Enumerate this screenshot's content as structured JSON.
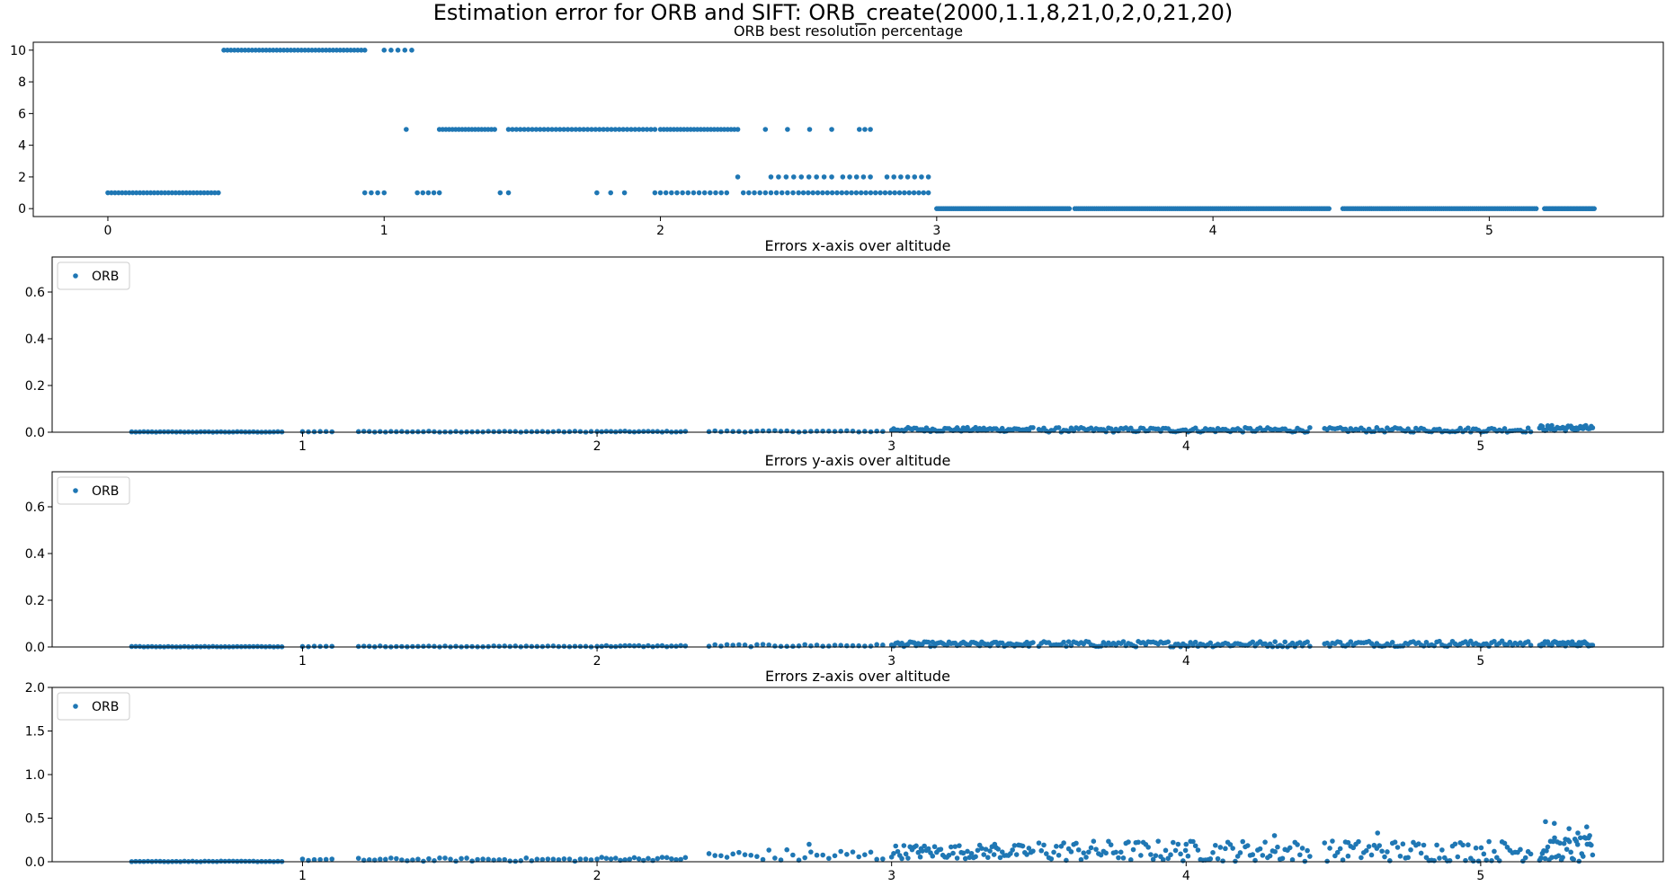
{
  "figure": {
    "suptitle": "Estimation error for ORB and SIFT: ORB_create(2000,1.1,8,21,0,2,0,21,20)"
  },
  "colors": {
    "marker": "#1f77b4",
    "axes": "#000000",
    "background": "#ffffff"
  },
  "chart_data": [
    {
      "type": "scatter",
      "title": "ORB best resolution percentage",
      "xlabel": "",
      "ylabel": "",
      "xlim": [
        -0.27,
        5.63
      ],
      "ylim": [
        -0.5,
        10.5
      ],
      "xticks": [
        0,
        1,
        2,
        3,
        4,
        5
      ],
      "yticks": [
        0,
        2,
        4,
        6,
        8,
        10
      ],
      "grid": false,
      "legend": null,
      "series": [
        {
          "runs": [
            [
              0,
              0.4,
              1,
              32,
              0
            ],
            [
              0.42,
              0.93,
              10,
              41,
              0
            ],
            [
              1.0,
              1.1,
              10,
              5,
              0
            ],
            [
              0.93,
              1.0,
              1,
              4,
              0
            ],
            [
              1.08,
              1.08,
              5,
              1,
              0
            ],
            [
              1.12,
              1.2,
              1,
              5,
              0
            ],
            [
              1.2,
              1.4,
              5,
              18,
              0
            ],
            [
              1.42,
              1.45,
              1,
              2,
              0
            ],
            [
              1.45,
              1.98,
              5,
              38,
              0
            ],
            [
              1.77,
              1.87,
              1,
              3,
              0
            ],
            [
              2.0,
              2.28,
              5,
              24,
              0
            ],
            [
              1.98,
              2.24,
              1,
              14,
              0
            ],
            [
              2.3,
              2.48,
              1,
              10,
              0
            ],
            [
              2.28,
              2.28,
              2,
              1,
              0
            ],
            [
              2.4,
              2.62,
              2,
              9,
              0
            ],
            [
              2.5,
              2.97,
              1,
              28,
              0
            ],
            [
              2.66,
              2.76,
              2,
              5,
              0
            ],
            [
              2.82,
              2.97,
              2,
              7,
              0
            ],
            [
              2.72,
              2.76,
              5,
              3,
              0
            ],
            [
              2.38,
              2.62,
              5,
              4,
              0
            ],
            [
              3.0,
              3.48,
              0,
              80,
              0
            ],
            [
              3.5,
              4.42,
              0,
              130,
              0
            ],
            [
              4.47,
              5.17,
              0,
              95,
              0
            ],
            [
              5.2,
              5.38,
              0,
              40,
              0
            ]
          ]
        }
      ]
    },
    {
      "type": "scatter",
      "title": "Errors x-axis over altitude",
      "xlabel": "",
      "ylabel": "",
      "xlim": [
        0.15,
        5.62
      ],
      "ylim": [
        0,
        0.75
      ],
      "xticks": [
        1,
        2,
        3,
        4,
        5
      ],
      "yticks": [
        0.0,
        0.2,
        0.4,
        0.6
      ],
      "grid": false,
      "legend": "upper-left",
      "series": [
        {
          "name": "ORB",
          "runs": [
            [
              0.42,
              0.93,
              0.001,
              38,
              0.001
            ],
            [
              1.0,
              1.1,
              0.002,
              6,
              0.001
            ],
            [
              1.19,
              1.98,
              0.002,
              44,
              0.002
            ],
            [
              2.0,
              2.3,
              0.002,
              20,
              0.002
            ],
            [
              2.38,
              2.97,
              0.003,
              30,
              0.003
            ],
            [
              3.0,
              3.48,
              0.01,
              70,
              0.009
            ],
            [
              3.5,
              4.42,
              0.008,
              110,
              0.01
            ],
            [
              4.47,
              5.17,
              0.008,
              80,
              0.01
            ],
            [
              5.2,
              5.38,
              0.015,
              40,
              0.012
            ]
          ]
        }
      ]
    },
    {
      "type": "scatter",
      "title": "Errors y-axis over altitude",
      "xlabel": "",
      "ylabel": "",
      "xlim": [
        0.15,
        5.62
      ],
      "ylim": [
        0,
        0.75
      ],
      "xticks": [
        1,
        2,
        3,
        4,
        5
      ],
      "yticks": [
        0.0,
        0.2,
        0.4,
        0.6
      ],
      "grid": false,
      "legend": "upper-left",
      "series": [
        {
          "name": "ORB",
          "runs": [
            [
              0.42,
              0.93,
              0.001,
              38,
              0.001
            ],
            [
              1.0,
              1.1,
              0.002,
              6,
              0.001
            ],
            [
              1.19,
              1.98,
              0.002,
              44,
              0.002
            ],
            [
              2.0,
              2.3,
              0.003,
              20,
              0.003
            ],
            [
              2.38,
              2.97,
              0.005,
              30,
              0.005
            ],
            [
              3.0,
              3.48,
              0.01,
              70,
              0.01
            ],
            [
              3.5,
              4.42,
              0.01,
              110,
              0.012
            ],
            [
              4.47,
              5.17,
              0.012,
              80,
              0.012
            ],
            [
              5.2,
              5.38,
              0.012,
              40,
              0.01
            ]
          ]
        }
      ]
    },
    {
      "type": "scatter",
      "title": "Errors z-axis over altitude",
      "xlabel": "",
      "ylabel": "",
      "xlim": [
        0.15,
        5.62
      ],
      "ylim": [
        0,
        2.0
      ],
      "xticks": [
        1,
        2,
        3,
        4,
        5
      ],
      "yticks": [
        0.0,
        0.5,
        1.0,
        1.5,
        2.0
      ],
      "grid": false,
      "legend": "upper-left",
      "series": [
        {
          "name": "ORB",
          "runs": [
            [
              0.42,
              0.93,
              0.003,
              38,
              0.003
            ],
            [
              1.0,
              1.1,
              0.02,
              6,
              0.01
            ],
            [
              1.19,
              1.98,
              0.02,
              44,
              0.02
            ],
            [
              2.0,
              2.3,
              0.03,
              20,
              0.02
            ],
            [
              2.38,
              2.97,
              0.05,
              30,
              0.08
            ],
            [
              3.0,
              3.48,
              0.1,
              70,
              0.08
            ],
            [
              3.5,
              4.42,
              0.1,
              110,
              0.12
            ],
            [
              4.47,
              5.17,
              0.1,
              80,
              0.12
            ],
            [
              5.2,
              5.38,
              0.1,
              40,
              0.15
            ]
          ],
          "points": [
            [
              5.22,
              0.46
            ],
            [
              5.25,
              0.44
            ],
            [
              5.3,
              0.38
            ],
            [
              5.33,
              0.33
            ],
            [
              5.36,
              0.4
            ],
            [
              5.37,
              0.3
            ],
            [
              5.37,
              0.2
            ],
            [
              4.65,
              0.33
            ],
            [
              4.3,
              0.3
            ],
            [
              3.35,
              0.2
            ],
            [
              2.72,
              0.2
            ],
            [
              4.55,
              0.22
            ],
            [
              3.1,
              0.15
            ],
            [
              4.0,
              0.2
            ]
          ]
        }
      ]
    }
  ]
}
